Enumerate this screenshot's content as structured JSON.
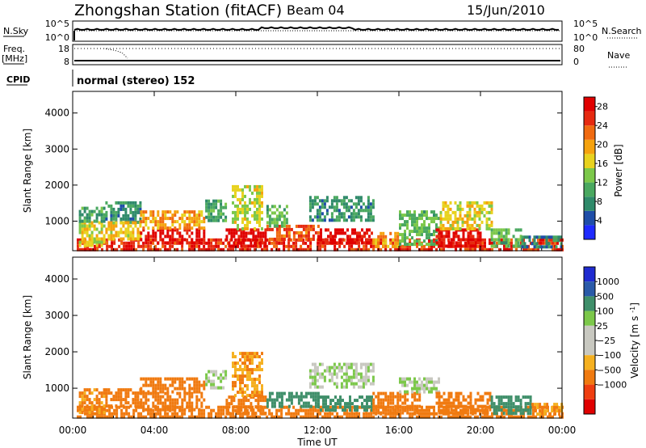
{
  "header": {
    "station": "Zhongshan Station (fitACF)",
    "beam": "Beam 04",
    "date": "15/Jun/2010"
  },
  "top_panels": {
    "nsky_label": "N.Sky",
    "nsky_ticks": [
      "10^5",
      "10^0"
    ],
    "nsearch_label": "N.Search",
    "nsearch_ticks": [
      "10^5",
      "10^0"
    ],
    "freq_label": "Freq.",
    "freq_unit": "[MHz]",
    "freq_ticks": [
      "18",
      "8"
    ],
    "nave_label": "Nave",
    "nave_ticks": [
      "80",
      "0"
    ],
    "cpid_label": "CPID",
    "cpid_text": "normal (stereo) 152"
  },
  "colors": {
    "power_scale": [
      "#1f2bff",
      "#1f4ea8",
      "#2f8a6a",
      "#4aa860",
      "#7cc84a",
      "#e8d21e",
      "#f5a20e",
      "#f06a10",
      "#e62a10",
      "#e00000"
    ],
    "velocity_scale": [
      "#e00000",
      "#ef3e10",
      "#f07a10",
      "#f5b020",
      "#c8c8c0",
      "#c8c8c0",
      "#7cc84a",
      "#3f8f6a",
      "#2a5aa8",
      "#1f2bd0"
    ]
  },
  "chart_data": [
    {
      "type": "heatmap",
      "title": "",
      "xlabel": "",
      "ylabel": "Slant Range [km]",
      "x_ticks": [
        "00:00",
        "04:00",
        "08:00",
        "12:00",
        "16:00",
        "20:00",
        "00:00"
      ],
      "y_ticks": [
        "1000",
        "2000",
        "3000",
        "4000"
      ],
      "xlim_hours": [
        0,
        24
      ],
      "ylim_km": [
        180,
        4600
      ],
      "colorbar": {
        "label": "Power [dB]",
        "ticks": [
          "4",
          "8",
          "12",
          "16",
          "20",
          "24",
          "28"
        ],
        "range": [
          0,
          30
        ]
      },
      "regions": [
        {
          "x": [
            0.2,
            24.0
          ],
          "y": [
            200,
            520
          ],
          "value": 24
        },
        {
          "x": [
            0.3,
            1.6
          ],
          "y": [
            300,
            1000
          ],
          "value": 14
        },
        {
          "x": [
            0.3,
            1.6
          ],
          "y": [
            1000,
            1400
          ],
          "value": 8
        },
        {
          "x": [
            1.6,
            3.3
          ],
          "y": [
            1000,
            1550
          ],
          "value": 6
        },
        {
          "x": [
            1.6,
            3.3
          ],
          "y": [
            500,
            1000
          ],
          "value": 16
        },
        {
          "x": [
            3.3,
            6.5
          ],
          "y": [
            400,
            800
          ],
          "value": 27
        },
        {
          "x": [
            3.3,
            6.5
          ],
          "y": [
            800,
            1300
          ],
          "value": 18
        },
        {
          "x": [
            6.5,
            7.5
          ],
          "y": [
            1000,
            1600
          ],
          "value": 8
        },
        {
          "x": [
            7.5,
            9.5
          ],
          "y": [
            300,
            800
          ],
          "value": 28
        },
        {
          "x": [
            7.8,
            9.3
          ],
          "y": [
            800,
            2000
          ],
          "value": 14
        },
        {
          "x": [
            9.5,
            12.0
          ],
          "y": [
            500,
            900
          ],
          "value": 22
        },
        {
          "x": [
            9.5,
            10.5
          ],
          "y": [
            900,
            1450
          ],
          "value": 10
        },
        {
          "x": [
            12.0,
            14.7
          ],
          "y": [
            400,
            800
          ],
          "value": 26
        },
        {
          "x": [
            11.6,
            14.8
          ],
          "y": [
            1000,
            1700
          ],
          "value": 7
        },
        {
          "x": [
            14.7,
            16.0
          ],
          "y": [
            300,
            700
          ],
          "value": 18
        },
        {
          "x": [
            16.0,
            18.0
          ],
          "y": [
            400,
            1300
          ],
          "value": 10
        },
        {
          "x": [
            17.8,
            20.0
          ],
          "y": [
            300,
            800
          ],
          "value": 27
        },
        {
          "x": [
            18.0,
            20.5
          ],
          "y": [
            800,
            1550
          ],
          "value": 15
        },
        {
          "x": [
            20.5,
            22.0
          ],
          "y": [
            300,
            800
          ],
          "value": 10
        },
        {
          "x": [
            22.0,
            24.0
          ],
          "y": [
            250,
            600
          ],
          "value": 6
        }
      ]
    },
    {
      "type": "heatmap",
      "title": "",
      "xlabel": "Time UT",
      "ylabel": "Slant Range [km]",
      "x_ticks": [
        "00:00",
        "04:00",
        "08:00",
        "12:00",
        "16:00",
        "20:00",
        "00:00"
      ],
      "y_ticks": [
        "1000",
        "2000",
        "3000",
        "4000"
      ],
      "xlim_hours": [
        0,
        24
      ],
      "ylim_km": [
        180,
        4600
      ],
      "colorbar": {
        "label": "Velocity [m s-1]",
        "ticks": [
          "1000",
          "500",
          "100",
          "25",
          "−25",
          "−100",
          "−500",
          "−1000"
        ]
      },
      "regions": [
        {
          "x": [
            0.2,
            24.0
          ],
          "y": [
            200,
            520
          ],
          "value": -300
        },
        {
          "x": [
            0.3,
            1.6
          ],
          "y": [
            300,
            1000
          ],
          "value": -150
        },
        {
          "x": [
            1.6,
            3.3
          ],
          "y": [
            500,
            1000
          ],
          "value": -300
        },
        {
          "x": [
            3.3,
            6.5
          ],
          "y": [
            400,
            900
          ],
          "value": -400
        },
        {
          "x": [
            3.3,
            6.5
          ],
          "y": [
            900,
            1300
          ],
          "value": -200
        },
        {
          "x": [
            6.5,
            7.5
          ],
          "y": [
            1000,
            1500
          ],
          "value": 0
        },
        {
          "x": [
            7.5,
            9.5
          ],
          "y": [
            300,
            800
          ],
          "value": -400
        },
        {
          "x": [
            7.8,
            9.3
          ],
          "y": [
            800,
            2000
          ],
          "value": -120
        },
        {
          "x": [
            9.5,
            12.0
          ],
          "y": [
            500,
            900
          ],
          "value": 150
        },
        {
          "x": [
            11.6,
            14.8
          ],
          "y": [
            1000,
            1700
          ],
          "value": 0
        },
        {
          "x": [
            12.0,
            14.7
          ],
          "y": [
            400,
            800
          ],
          "value": 150
        },
        {
          "x": [
            14.7,
            17.0
          ],
          "y": [
            300,
            900
          ],
          "value": -300
        },
        {
          "x": [
            16.0,
            18.0
          ],
          "y": [
            900,
            1300
          ],
          "value": 0
        },
        {
          "x": [
            17.8,
            20.5
          ],
          "y": [
            300,
            900
          ],
          "value": -400
        },
        {
          "x": [
            20.5,
            22.5
          ],
          "y": [
            300,
            800
          ],
          "value": 150
        },
        {
          "x": [
            22.5,
            24.0
          ],
          "y": [
            250,
            600
          ],
          "value": -120
        }
      ]
    }
  ]
}
